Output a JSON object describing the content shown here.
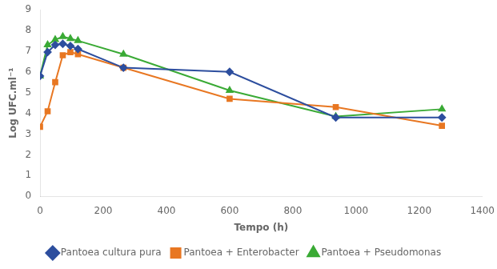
{
  "chart_data": {
    "type": "line",
    "x_label": "Tempo (h)",
    "y_label": "Log UFC.ml⁻¹",
    "x": [
      0,
      24,
      48,
      72,
      96,
      120,
      264,
      600,
      936,
      1272
    ],
    "series": [
      {
        "name": "Pantoea cultura pura",
        "color": "#2d4e9e",
        "marker": "diamond",
        "values": [
          5.8,
          6.95,
          7.3,
          7.35,
          7.25,
          7.1,
          6.2,
          6.0,
          3.8,
          3.8
        ]
      },
      {
        "name": "Pantoea + Enterobacter",
        "color": "#e87722",
        "marker": "square",
        "values": [
          3.35,
          4.1,
          5.5,
          6.8,
          6.95,
          6.85,
          6.2,
          4.7,
          4.3,
          3.4
        ]
      },
      {
        "name": "Pantoea + Pseudomonas",
        "color": "#3aaa35",
        "marker": "triangle",
        "values": [
          5.8,
          7.3,
          7.55,
          7.7,
          7.6,
          7.5,
          6.85,
          5.1,
          3.85,
          4.2
        ]
      }
    ],
    "xlim": [
      0,
      1400
    ],
    "ylim": [
      0,
      9
    ],
    "xticks": [
      0,
      200,
      400,
      600,
      800,
      1000,
      1200,
      1400
    ],
    "yticks": [
      0,
      1,
      2,
      3,
      4,
      5,
      6,
      7,
      8,
      9
    ],
    "grid": false,
    "legend": "bottom"
  }
}
